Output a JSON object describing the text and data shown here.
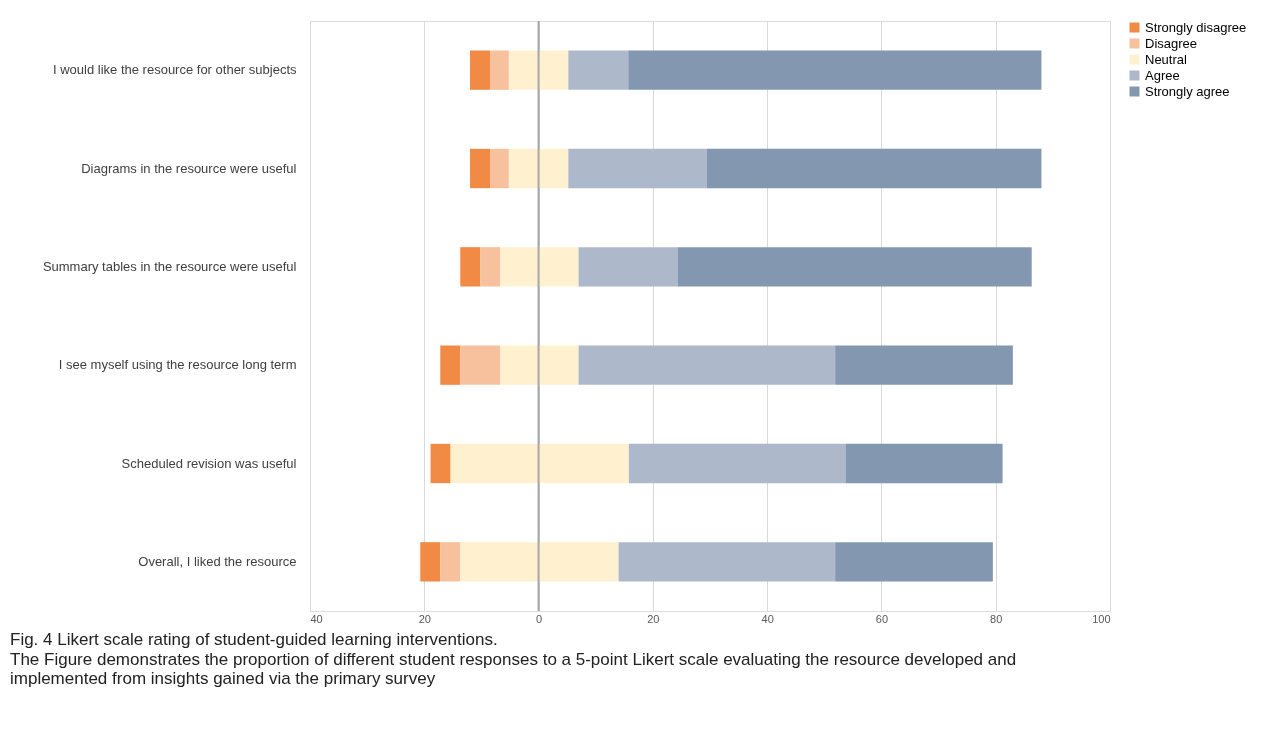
{
  "chart_data": {
    "type": "bar",
    "orientation": "horizontal",
    "title": "Fig. 4  Likert scale rating of student-guided learning interventions.",
    "annotations": [
      "The Figure demonstrates the proportion of different student responses to a 5-point Likert scale evaluating the resource developed and implemented from insights gained via the primary survey"
    ],
    "categories": [
      "I would like the resource for other subjects",
      "Diagrams in the resource were useful",
      "Summary tables in the resource were useful",
      "I see myself using the resource long term",
      "Scheduled revision was useful",
      "Overall, I liked the resource"
    ],
    "series": [
      {
        "name": "Strongly disagree",
        "color": "#f08a45",
        "values": [
          3.5,
          3.5,
          3.5,
          3.5,
          3.5,
          3.5
        ],
        "base": [
          -12.0,
          -12.0,
          -13.7,
          -17.2,
          -18.9,
          -20.7
        ]
      },
      {
        "name": "Disagree",
        "color": "#f7c19d",
        "values": [
          3.3,
          3.3,
          3.5,
          7.0,
          null,
          3.5
        ],
        "base": [
          -8.5,
          -8.5,
          -10.2,
          -13.7,
          null,
          -17.2
        ]
      },
      {
        "name": "Neutral",
        "color": "#fff0cf",
        "values": [
          10.4,
          10.4,
          13.7,
          13.7,
          31.2,
          27.7
        ],
        "base": [
          -5.2,
          -5.2,
          -6.7,
          -6.7,
          -15.4,
          -13.7
        ]
      },
      {
        "name": "Agree",
        "color": "#adb9ca",
        "values": [
          10.5,
          24.2,
          17.4,
          44.9,
          37.9,
          37.9
        ],
        "base": [
          5.2,
          5.2,
          7.0,
          7.0,
          15.8,
          14.0
        ]
      },
      {
        "name": "Strongly agree",
        "color": "#8497b0",
        "values": [
          72.3,
          58.6,
          61.9,
          31.1,
          27.5,
          27.6
        ],
        "base": [
          15.7,
          29.4,
          24.4,
          51.9,
          53.7,
          51.9
        ]
      }
    ],
    "xlim": [
      -40,
      100
    ],
    "xticks": [
      {
        "value": -40,
        "label": "40"
      },
      {
        "value": -20,
        "label": "20"
      },
      0,
      20,
      40,
      60,
      80,
      100
    ],
    "grid": "x",
    "legend": "right",
    "ref_lines": [
      {
        "axis": "x",
        "value": 0,
        "color": "#a6a6a6"
      }
    ]
  }
}
